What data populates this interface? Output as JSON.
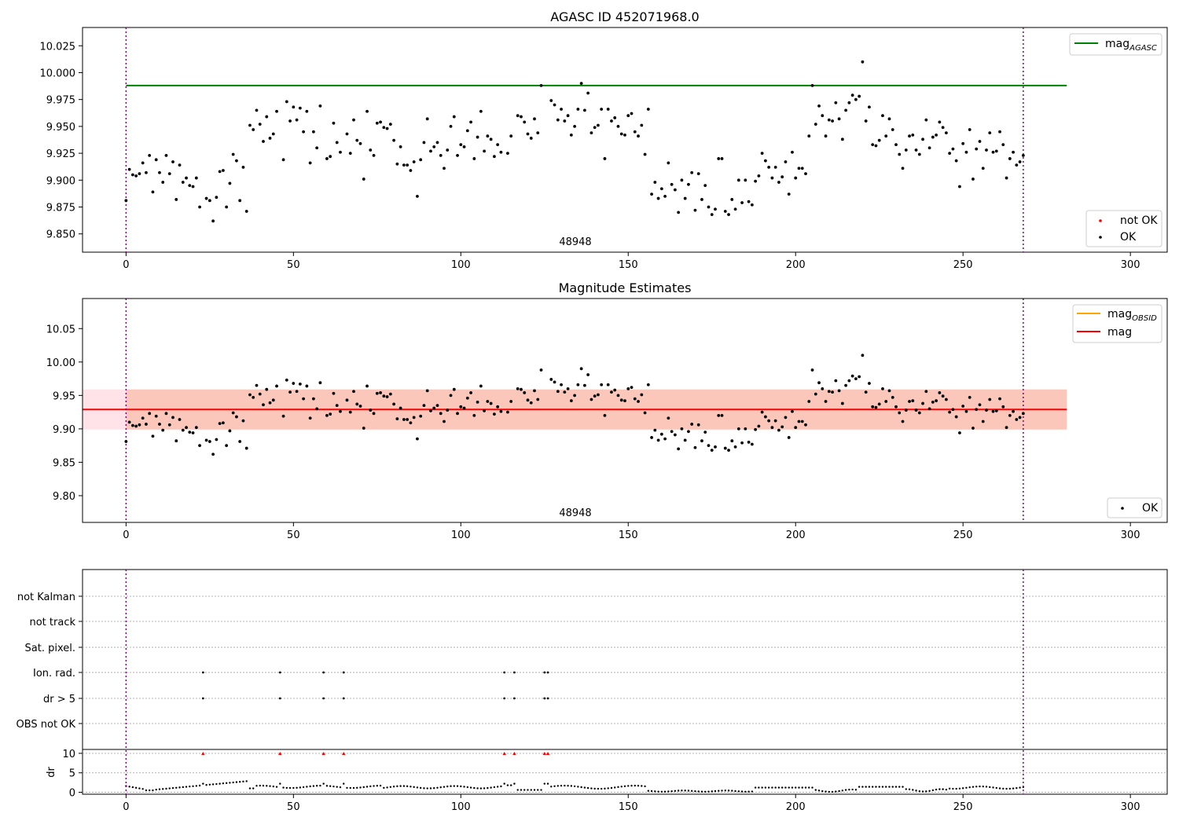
{
  "chart_data": [
    {
      "type": "scatter",
      "title": "AGASC ID 452071968.0",
      "xlim": [
        -13,
        311
      ],
      "ylim": [
        9.833,
        10.042
      ],
      "xticks": [
        0,
        50,
        100,
        150,
        200,
        250,
        300
      ],
      "yticks": [
        9.85,
        9.875,
        9.9,
        9.925,
        9.95,
        9.975,
        10.0,
        10.025
      ],
      "ytick_labels": [
        "9.850",
        "9.875",
        "9.900",
        "9.925",
        "9.950",
        "9.975",
        "10.000",
        "10.025"
      ],
      "obsid_label": "48948",
      "obsid_bounds": [
        0,
        268
      ],
      "reference_line": {
        "name": "mag",
        "subscript": "AGASC",
        "y": 9.988,
        "x_range": [
          0,
          281
        ],
        "color": "#008000"
      },
      "legend_top": {
        "entries": [
          {
            "label": "mag",
            "subscript": "AGASC",
            "color": "#008000",
            "kind": "line"
          }
        ],
        "placement": "top-right"
      },
      "legend_bottom": {
        "entries": [
          {
            "label": "not OK",
            "color": "#ff0000",
            "kind": "point"
          },
          {
            "label": "OK",
            "color": "#000000",
            "kind": "point"
          }
        ],
        "placement": "bottom-right"
      },
      "series": [
        {
          "name": "OK",
          "color": "#000000"
        }
      ]
    },
    {
      "type": "scatter",
      "title": "Magnitude Estimates",
      "xlim": [
        -13,
        311
      ],
      "ylim": [
        9.76,
        10.095
      ],
      "xticks": [
        0,
        50,
        100,
        150,
        200,
        250,
        300
      ],
      "yticks": [
        9.8,
        9.85,
        9.9,
        9.95,
        10.0,
        10.05
      ],
      "ytick_labels": [
        "9.80",
        "9.85",
        "9.90",
        "9.95",
        "10.00",
        "10.05"
      ],
      "obsid_label": "48948",
      "obsid_bounds": [
        0,
        268
      ],
      "mag_line": {
        "y": 9.929,
        "x_range": [
          0,
          281
        ],
        "color": "#ff0000"
      },
      "band_outer": {
        "y": [
          9.899,
          9.959
        ],
        "x_range": [
          -13,
          281
        ],
        "color": "#ffc0cb"
      },
      "band_inner": {
        "y": [
          9.899,
          9.959
        ],
        "x_range": [
          0,
          281
        ],
        "color": "#f4a582"
      },
      "legend_top": {
        "entries": [
          {
            "label": "mag",
            "subscript": "OBSID",
            "color": "#ffa500",
            "kind": "line"
          },
          {
            "label": "mag",
            "color": "#ff0000",
            "kind": "line"
          }
        ],
        "placement": "top-right"
      },
      "legend_bottom": {
        "entries": [
          {
            "label": "OK",
            "color": "#000000",
            "kind": "point"
          }
        ],
        "placement": "bottom-right"
      },
      "series": [
        {
          "name": "OK",
          "color": "#000000"
        }
      ]
    },
    {
      "type": "scatter",
      "title": "",
      "xlim": [
        -13,
        311
      ],
      "xticks": [
        0,
        50,
        100,
        150,
        200,
        250,
        300
      ],
      "flag_rows": [
        "not Kalman",
        "not track",
        "Sat. pixel.",
        "Ion. rad.",
        "dr > 5",
        "OBS not OK"
      ],
      "flag_points": {
        "Ion. rad.": [
          23,
          46,
          59,
          65,
          113,
          116,
          125,
          126
        ],
        "dr > 5": [
          23,
          46,
          59,
          65,
          113,
          116,
          125,
          126
        ]
      },
      "dr_ylabel": "dr",
      "dr_ylim": [
        -0.5,
        11
      ],
      "dr_yticks": [
        0,
        5,
        10
      ],
      "dr_flagged_x": [
        23,
        46,
        59,
        65,
        113,
        116,
        125,
        126
      ],
      "dr_flagged_color": "#ff0000",
      "obsid_bounds": [
        0,
        268
      ]
    }
  ]
}
